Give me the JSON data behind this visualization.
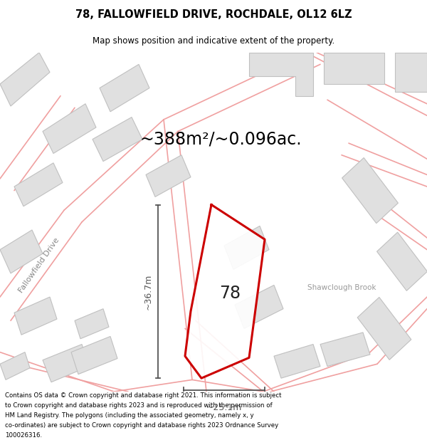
{
  "title": "78, FALLOWFIELD DRIVE, ROCHDALE, OL12 6LZ",
  "subtitle": "Map shows position and indicative extent of the property.",
  "area_text": "~388m²/~0.096ac.",
  "dim_horizontal": "~25.1m",
  "dim_vertical": "~36.7m",
  "label_78": "78",
  "label_shawclough": "Shawclough Brook",
  "label_fallowfield": "Fallowfield Drive",
  "footer": "Contains OS data © Crown copyright and database right 2021. This information is subject to Crown copyright and database rights 2023 and is reproduced with the permission of HM Land Registry. The polygons (including the associated geometry, namely x, y co-ordinates) are subject to Crown copyright and database rights 2023 Ordnance Survey 100026316.",
  "bg_color": "#f2f2f2",
  "building_fill": "#e0e0e0",
  "building_edge": "#c0c0c0",
  "road_line_color": "#f0a0a0",
  "road_outline_color": "#d08080",
  "red_plot_color": "#cc0000",
  "dim_line_color": "#555555",
  "title_color": "#000000",
  "footer_color": "#000000",
  "shawclough_color": "#999999",
  "fallowfield_color": "#888888",
  "white": "#ffffff"
}
